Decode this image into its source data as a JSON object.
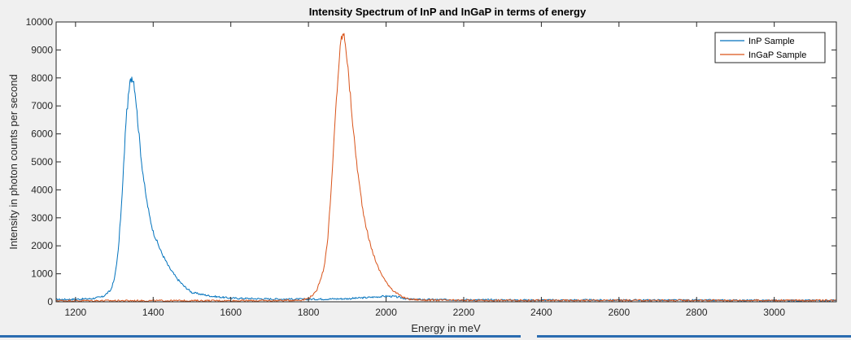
{
  "chart_data": {
    "type": "line",
    "title": "Intensity Spectrum of InP and InGaP in terms of energy",
    "xlabel": "Energy in meV",
    "ylabel": "Intensity in photon counts per second",
    "xlim": [
      1150,
      3160
    ],
    "ylim": [
      0,
      10000
    ],
    "xticks": [
      1200,
      1400,
      1600,
      1800,
      2000,
      2200,
      2400,
      2600,
      2800,
      3000
    ],
    "yticks": [
      0,
      1000,
      2000,
      3000,
      4000,
      5000,
      6000,
      7000,
      8000,
      9000,
      10000
    ],
    "grid": false,
    "legend_position": "top-right",
    "series": [
      {
        "name": "InP Sample",
        "color": "#0072bd",
        "x": [
          1150,
          1200,
          1240,
          1270,
          1290,
          1300,
          1310,
          1320,
          1330,
          1340,
          1345,
          1350,
          1355,
          1360,
          1370,
          1380,
          1390,
          1400,
          1420,
          1440,
          1460,
          1480,
          1500,
          1550,
          1600,
          1700,
          1800,
          1900,
          1950,
          2000,
          2020,
          2040,
          2060,
          2100,
          2200,
          2400,
          2600,
          2800,
          3000,
          3160
        ],
        "y": [
          80,
          90,
          110,
          180,
          400,
          800,
          1800,
          3800,
          6500,
          7800,
          8050,
          7900,
          7300,
          6500,
          5000,
          3900,
          3100,
          2500,
          1800,
          1250,
          850,
          550,
          330,
          200,
          130,
          100,
          90,
          110,
          150,
          200,
          190,
          140,
          90,
          80,
          70,
          60,
          60,
          55,
          50,
          50
        ]
      },
      {
        "name": "InGaP Sample",
        "color": "#d95319",
        "x": [
          1150,
          1300,
          1500,
          1700,
          1780,
          1800,
          1820,
          1840,
          1850,
          1860,
          1870,
          1880,
          1885,
          1890,
          1895,
          1900,
          1910,
          1920,
          1930,
          1940,
          1950,
          1960,
          1980,
          2000,
          2020,
          2040,
          2060,
          2100,
          2200,
          2400,
          2600,
          2800,
          3000,
          3160
        ],
        "y": [
          40,
          40,
          40,
          40,
          60,
          120,
          350,
          1200,
          2300,
          4300,
          6800,
          8800,
          9450,
          9550,
          9300,
          8600,
          7000,
          5500,
          4300,
          3300,
          2600,
          2000,
          1200,
          700,
          380,
          180,
          90,
          60,
          50,
          50,
          50,
          50,
          50,
          50
        ]
      }
    ]
  }
}
